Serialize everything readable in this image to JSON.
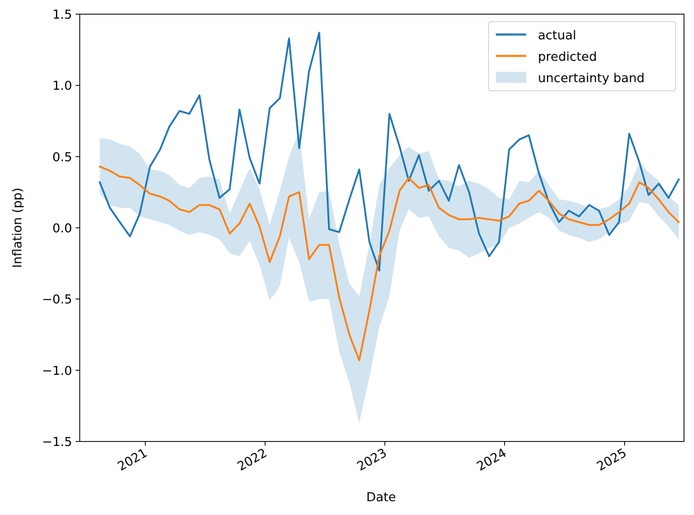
{
  "chart_data": {
    "type": "line",
    "xlabel": "Date",
    "ylabel": "Inflation (pp)",
    "xlim": [
      "2020-06-15",
      "2025-07-01"
    ],
    "ylim": [
      -1.5,
      1.5
    ],
    "x_ticks": [
      {
        "label": "2021",
        "date": "2021-01-01"
      },
      {
        "label": "2022",
        "date": "2022-01-01"
      },
      {
        "label": "2023",
        "date": "2023-01-01"
      },
      {
        "label": "2024",
        "date": "2024-01-01"
      },
      {
        "label": "2025",
        "date": "2025-01-01"
      }
    ],
    "y_ticks": [
      {
        "label": "1.5",
        "value": 1.5
      },
      {
        "label": "1.0",
        "value": 1.0
      },
      {
        "label": "0.5",
        "value": 0.5
      },
      {
        "label": "0.0",
        "value": 0.0
      },
      {
        "label": "−0.5",
        "value": -0.5
      },
      {
        "label": "−1.0",
        "value": -1.0
      },
      {
        "label": "−1.5",
        "value": -1.5
      }
    ],
    "grid": false,
    "legend_position": "top-right",
    "x": [
      "2020-08",
      "2020-09",
      "2020-10",
      "2020-11",
      "2020-12",
      "2021-01",
      "2021-02",
      "2021-03",
      "2021-04",
      "2021-05",
      "2021-06",
      "2021-07",
      "2021-08",
      "2021-09",
      "2021-10",
      "2021-11",
      "2021-12",
      "2022-01",
      "2022-02",
      "2022-03",
      "2022-04",
      "2022-05",
      "2022-06",
      "2022-07",
      "2022-08",
      "2022-09",
      "2022-10",
      "2022-11",
      "2022-12",
      "2023-01",
      "2023-02",
      "2023-03",
      "2023-04",
      "2023-05",
      "2023-06",
      "2023-07",
      "2023-08",
      "2023-09",
      "2023-10",
      "2023-11",
      "2023-12",
      "2024-01",
      "2024-02",
      "2024-03",
      "2024-04",
      "2024-05",
      "2024-06",
      "2024-07",
      "2024-08",
      "2024-09",
      "2024-10",
      "2024-11",
      "2024-12",
      "2025-01",
      "2025-02",
      "2025-03",
      "2025-04",
      "2025-05",
      "2025-06"
    ],
    "series": [
      {
        "name": "actual",
        "color": "#1f77b4",
        "values": [
          0.32,
          0.14,
          0.04,
          -0.06,
          0.1,
          0.43,
          0.55,
          0.71,
          0.82,
          0.8,
          0.93,
          0.48,
          0.21,
          0.27,
          0.83,
          0.49,
          0.31,
          0.84,
          0.91,
          1.33,
          0.56,
          1.1,
          1.37,
          -0.01,
          -0.03,
          0.2,
          0.41,
          -0.1,
          -0.3,
          0.8,
          0.57,
          0.33,
          0.51,
          0.26,
          0.33,
          0.19,
          0.44,
          0.25,
          -0.04,
          -0.2,
          -0.1,
          0.55,
          0.62,
          0.65,
          0.38,
          0.18,
          0.04,
          0.12,
          0.08,
          0.16,
          0.12,
          -0.05,
          0.04,
          0.66,
          0.46,
          0.23,
          0.31,
          0.21,
          0.34
        ]
      },
      {
        "name": "predicted",
        "color": "#ff7f0e",
        "values": [
          0.43,
          0.4,
          0.36,
          0.35,
          0.3,
          0.24,
          0.22,
          0.19,
          0.13,
          0.11,
          0.16,
          0.16,
          0.13,
          -0.04,
          0.03,
          0.17,
          0.01,
          -0.24,
          -0.06,
          0.22,
          0.25,
          -0.22,
          -0.12,
          -0.12,
          -0.49,
          -0.75,
          -0.93,
          -0.58,
          -0.2,
          -0.02,
          0.26,
          0.35,
          0.28,
          0.3,
          0.14,
          0.09,
          0.06,
          0.06,
          0.07,
          0.06,
          0.05,
          0.08,
          0.17,
          0.19,
          0.26,
          0.19,
          0.1,
          0.06,
          0.04,
          0.02,
          0.02,
          0.06,
          0.11,
          0.17,
          0.32,
          0.28,
          0.2,
          0.11,
          0.04
        ]
      }
    ],
    "band": {
      "name": "uncertainty band",
      "color": "#1f77b4",
      "opacity": 0.2,
      "lower": [
        0.24,
        0.16,
        0.14,
        0.14,
        0.08,
        0.06,
        0.04,
        0.02,
        -0.02,
        -0.05,
        -0.03,
        -0.05,
        -0.08,
        -0.18,
        -0.2,
        -0.09,
        -0.26,
        -0.51,
        -0.41,
        -0.07,
        -0.24,
        -0.52,
        -0.5,
        -0.5,
        -0.87,
        -1.09,
        -1.37,
        -1.05,
        -0.7,
        -0.48,
        -0.02,
        0.13,
        0.07,
        0.08,
        -0.06,
        -0.14,
        -0.16,
        -0.21,
        -0.18,
        -0.14,
        -0.12,
        0.0,
        0.03,
        0.07,
        0.11,
        0.07,
        -0.02,
        -0.05,
        -0.07,
        -0.1,
        -0.08,
        -0.03,
        0.02,
        0.05,
        0.18,
        0.17,
        0.08,
        0.01,
        -0.08
      ],
      "upper": [
        0.63,
        0.62,
        0.59,
        0.57,
        0.52,
        0.41,
        0.4,
        0.37,
        0.3,
        0.28,
        0.35,
        0.36,
        0.34,
        0.1,
        0.26,
        0.42,
        0.27,
        0.02,
        0.26,
        0.5,
        0.68,
        0.06,
        0.25,
        0.26,
        -0.11,
        -0.39,
        -0.48,
        -0.12,
        0.3,
        0.42,
        0.51,
        0.57,
        0.52,
        0.54,
        0.34,
        0.33,
        0.29,
        0.33,
        0.31,
        0.27,
        0.21,
        0.2,
        0.33,
        0.32,
        0.4,
        0.3,
        0.2,
        0.19,
        0.17,
        0.14,
        0.13,
        0.15,
        0.2,
        0.29,
        0.46,
        0.39,
        0.33,
        0.22,
        0.16
      ]
    }
  }
}
